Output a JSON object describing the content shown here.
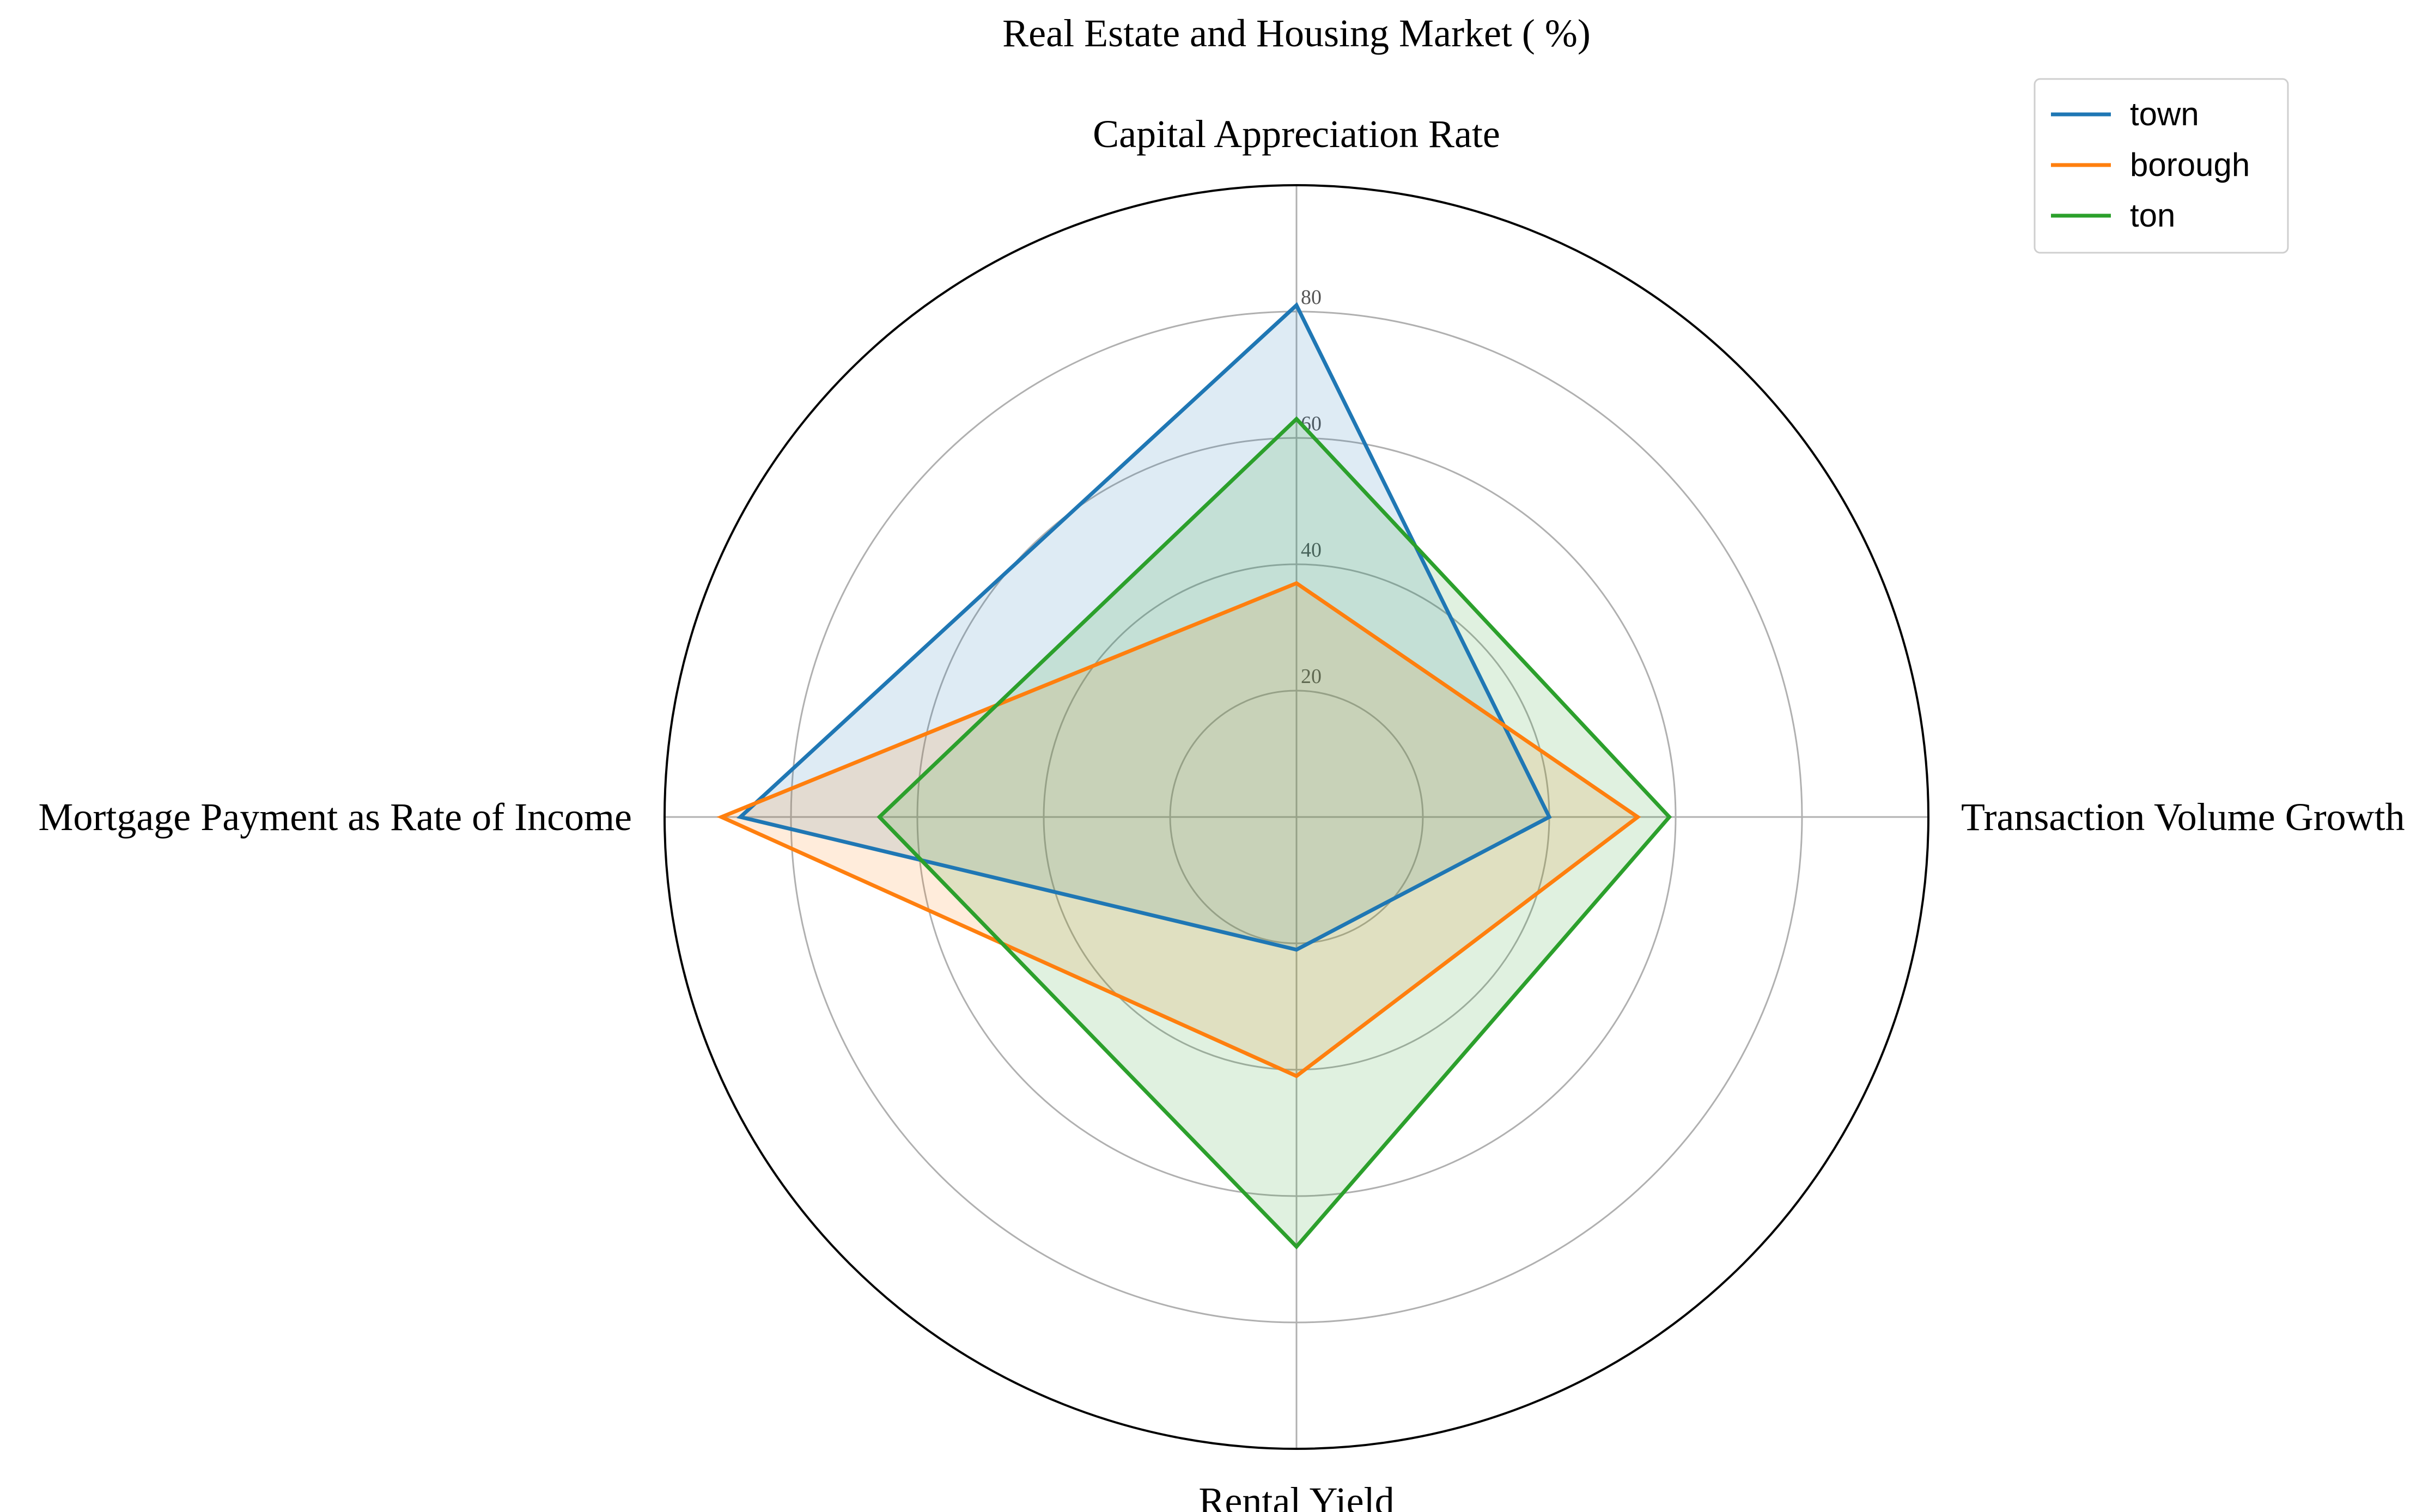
{
  "chart_data": {
    "type": "radar",
    "title": "Real Estate and Housing Market ( %)",
    "axes": [
      "Capital Appreciation Rate",
      "Transaction Volume Growth",
      "Rental Yield",
      "Mortgage Payment as Rate of Income"
    ],
    "rlim": [
      0,
      100
    ],
    "rticks": [
      20,
      40,
      60,
      80
    ],
    "rtick_labels": [
      "20",
      "40",
      "60",
      "80"
    ],
    "grid": true,
    "legend_position": "top-right",
    "series": [
      {
        "name": "town",
        "color": "#1f77b4",
        "values": [
          81,
          40,
          21,
          88
        ]
      },
      {
        "name": "borough",
        "color": "#ff7f0e",
        "values": [
          37,
          54,
          41,
          91
        ]
      },
      {
        "name": "ton",
        "color": "#2ca02c",
        "values": [
          63,
          59,
          68,
          66
        ]
      }
    ]
  }
}
